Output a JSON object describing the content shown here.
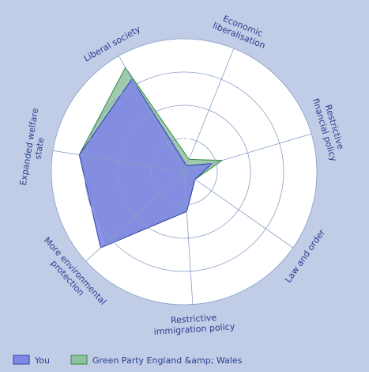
{
  "chart_data": {
    "type": "radar",
    "title": "",
    "axes": [
      [
        "Economic",
        "liberalisation"
      ],
      [
        "Restrictive",
        "financial policy"
      ],
      [
        "Law and order"
      ],
      [
        "Restrictive",
        "immigration policy"
      ],
      [
        "More environmental",
        "protection"
      ],
      [
        "Expanded welfare",
        "state"
      ],
      [
        "Liberal society"
      ]
    ],
    "rlim": [
      0,
      100
    ],
    "ticks": [
      "25",
      "50",
      "75",
      "100"
    ],
    "tick_values": [
      25,
      50,
      75,
      100
    ],
    "series": [
      {
        "name": "Green Party England &amp; Wales",
        "values": [
          10,
          30,
          10,
          30,
          80,
          80,
          90
        ],
        "fill": "#8fc1a0",
        "stroke": "#2f8a3b"
      },
      {
        "name": "You",
        "values": [
          5,
          22,
          10,
          30,
          85,
          80,
          80
        ],
        "fill": "#8087e6",
        "stroke": "#2b3fa8"
      }
    ],
    "legend_position": "bottom-left"
  },
  "colors": {
    "background": "#c1cce6",
    "plot": "#ffffff",
    "grid": "#8a9fc6",
    "text": "#2a3f8f"
  }
}
